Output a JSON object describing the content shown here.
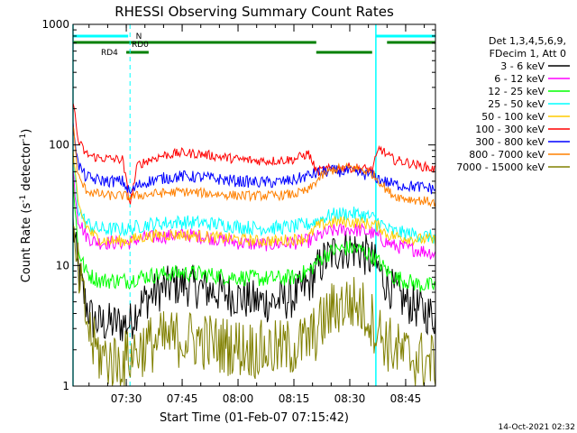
{
  "chart_data": {
    "type": "line",
    "title": "RHESSI Observing Summary Count Rates",
    "xlabel": "Start Time (01-Feb-07 07:15:42)",
    "ylabel_main": "Count Rate (s",
    "ylabel_sup1": "-1",
    "ylabel_mid": " detector",
    "ylabel_sup2": "-1",
    "ylabel_end": ")",
    "y_scale": "log",
    "ylim": [
      1,
      1000
    ],
    "xlim": [
      "07:15:42",
      "08:53:00"
    ],
    "x_tick_labels": [
      "07:30",
      "07:45",
      "08:00",
      "08:15",
      "08:30",
      "08:45"
    ],
    "x_tick_values": [
      "07:30",
      "07:45",
      "08:00",
      "08:15",
      "08:30",
      "08:45"
    ],
    "y_tick_labels": [
      "1",
      "10",
      "100",
      "1000"
    ],
    "y_tick_values": [
      1,
      10,
      100,
      1000
    ],
    "legend_header": [
      "Det 1,3,4,5,6,9,",
      "FDecim 1, Att 0"
    ],
    "legend_placement": "right",
    "timestamp": "14-Oct-2021 02:32",
    "flags": [
      {
        "label": "N",
        "color": "#00ffff",
        "segments": [
          [
            "07:15:42",
            "07:30:30"
          ],
          [
            "08:37:00",
            "08:53:00"
          ]
        ]
      },
      {
        "label": "RD0",
        "color": "#008000",
        "segments": [
          [
            "07:15:42",
            "08:21:00"
          ],
          [
            "08:40:00",
            "08:53:00"
          ]
        ]
      },
      {
        "label": "RD4",
        "color": "#008000",
        "segments": [
          [
            "07:30:00",
            "07:36:00"
          ],
          [
            "08:21:00",
            "08:36:00"
          ]
        ]
      }
    ],
    "dashed_markers": {
      "color": "#00ffff",
      "times": [
        "07:31:00",
        "08:53:00"
      ]
    },
    "solid_markers": {
      "color": "#00ffff",
      "times": [
        "07:15:42",
        "08:37:00"
      ]
    },
    "x": [
      "07:15:42",
      "07:17",
      "07:19",
      "07:21",
      "07:23",
      "07:25",
      "07:27",
      "07:29",
      "07:31",
      "07:33",
      "07:36",
      "07:40",
      "07:45",
      "07:50",
      "07:55",
      "08:00",
      "08:05",
      "08:10",
      "08:15",
      "08:19",
      "08:21",
      "08:23",
      "08:26",
      "08:30",
      "08:33",
      "08:36",
      "08:38",
      "08:40",
      "08:42",
      "08:45",
      "08:48",
      "08:51",
      "08:53"
    ],
    "series": [
      {
        "name": "3 - 6 keV",
        "color": "#000000",
        "values": [
          22,
          9,
          5,
          3.5,
          3.3,
          3.3,
          3.3,
          3.3,
          3.3,
          4.5,
          5.5,
          6.5,
          7,
          6.5,
          6,
          5.5,
          5,
          5,
          5.5,
          7,
          9,
          11,
          13,
          14,
          13,
          11,
          9,
          7,
          6,
          5,
          4.5,
          4,
          3.8
        ]
      },
      {
        "name": "6 - 12 keV",
        "color": "#ff00ff",
        "values": [
          60,
          25,
          18,
          16,
          15.5,
          15.5,
          15.5,
          15.5,
          15.5,
          16.5,
          17,
          17.5,
          18,
          17.5,
          16.5,
          15.5,
          15,
          15,
          15.5,
          16,
          17,
          18.5,
          19.5,
          20,
          19.5,
          18.5,
          17,
          15.5,
          14.5,
          14,
          13.5,
          13,
          12.5
        ]
      },
      {
        "name": "12 - 25 keV",
        "color": "#00ff00",
        "values": [
          55,
          14,
          9,
          8,
          7.5,
          7.5,
          7.5,
          7.5,
          7.5,
          8,
          8.2,
          8.5,
          8.7,
          8.5,
          8.2,
          8,
          7.8,
          7.8,
          8,
          9,
          10.5,
          12,
          13.5,
          14,
          13.5,
          12,
          10.5,
          9,
          8,
          7.5,
          7,
          6.8,
          6.8
        ]
      },
      {
        "name": "25 - 50 keV",
        "color": "#00ffff",
        "values": [
          80,
          30,
          23,
          21,
          20,
          20,
          20,
          20,
          20,
          21,
          22,
          22.5,
          23,
          22.5,
          22,
          21,
          20.5,
          20.5,
          21,
          22,
          23.5,
          25,
          26.5,
          27,
          26.5,
          25,
          23,
          20,
          19,
          18.5,
          18,
          17.5,
          17
        ]
      },
      {
        "name": "50 - 100 keV",
        "color": "#ffcc00",
        "values": [
          90,
          32,
          22,
          18,
          16.5,
          16,
          16,
          16,
          16,
          17,
          17.5,
          18,
          18,
          17.5,
          17,
          16.5,
          16,
          16,
          16.5,
          17,
          21,
          22,
          23,
          23,
          22.5,
          22,
          21,
          18,
          17.5,
          17,
          16.5,
          16.5,
          16
        ]
      },
      {
        "name": "100 - 300 keV",
        "color": "#ff0000",
        "values": [
          240,
          110,
          85,
          80,
          78,
          77,
          76,
          76,
          32,
          68,
          75,
          82,
          86,
          84,
          80,
          76,
          74,
          74,
          76,
          85,
          60,
          62,
          64,
          65,
          64,
          62,
          95,
          82,
          75,
          72,
          68,
          65,
          62
        ]
      },
      {
        "name": "300 - 800 keV",
        "color": "#0000ff",
        "values": [
          160,
          70,
          55,
          52,
          51,
          50,
          50,
          50,
          40,
          46,
          50,
          53,
          55,
          54,
          52,
          50,
          49,
          49,
          51,
          56,
          58,
          60,
          61,
          60,
          58,
          56,
          52,
          49,
          47,
          46,
          45,
          44,
          43
        ]
      },
      {
        "name": "800 - 7000 keV",
        "color": "#ff8000",
        "values": [
          150,
          55,
          43,
          40,
          39,
          38,
          38,
          38,
          37,
          38,
          39,
          40,
          41,
          40,
          39,
          38,
          38,
          38,
          39,
          42,
          50,
          57,
          63,
          65,
          63,
          58,
          50,
          42,
          38,
          36,
          35,
          34,
          33
        ]
      },
      {
        "name": "7000 - 15000 keV",
        "color": "#808000",
        "values": [
          15,
          9,
          4,
          2.2,
          1.8,
          1.7,
          1.6,
          1.6,
          1.8,
          2,
          2.2,
          2.4,
          2.5,
          2.4,
          2.2,
          2.1,
          2,
          2,
          2.1,
          2.4,
          2.8,
          3.5,
          4.5,
          5,
          4.5,
          3.5,
          2.8,
          2.3,
          2,
          1.8,
          1.7,
          1.6,
          1.6
        ]
      }
    ]
  }
}
